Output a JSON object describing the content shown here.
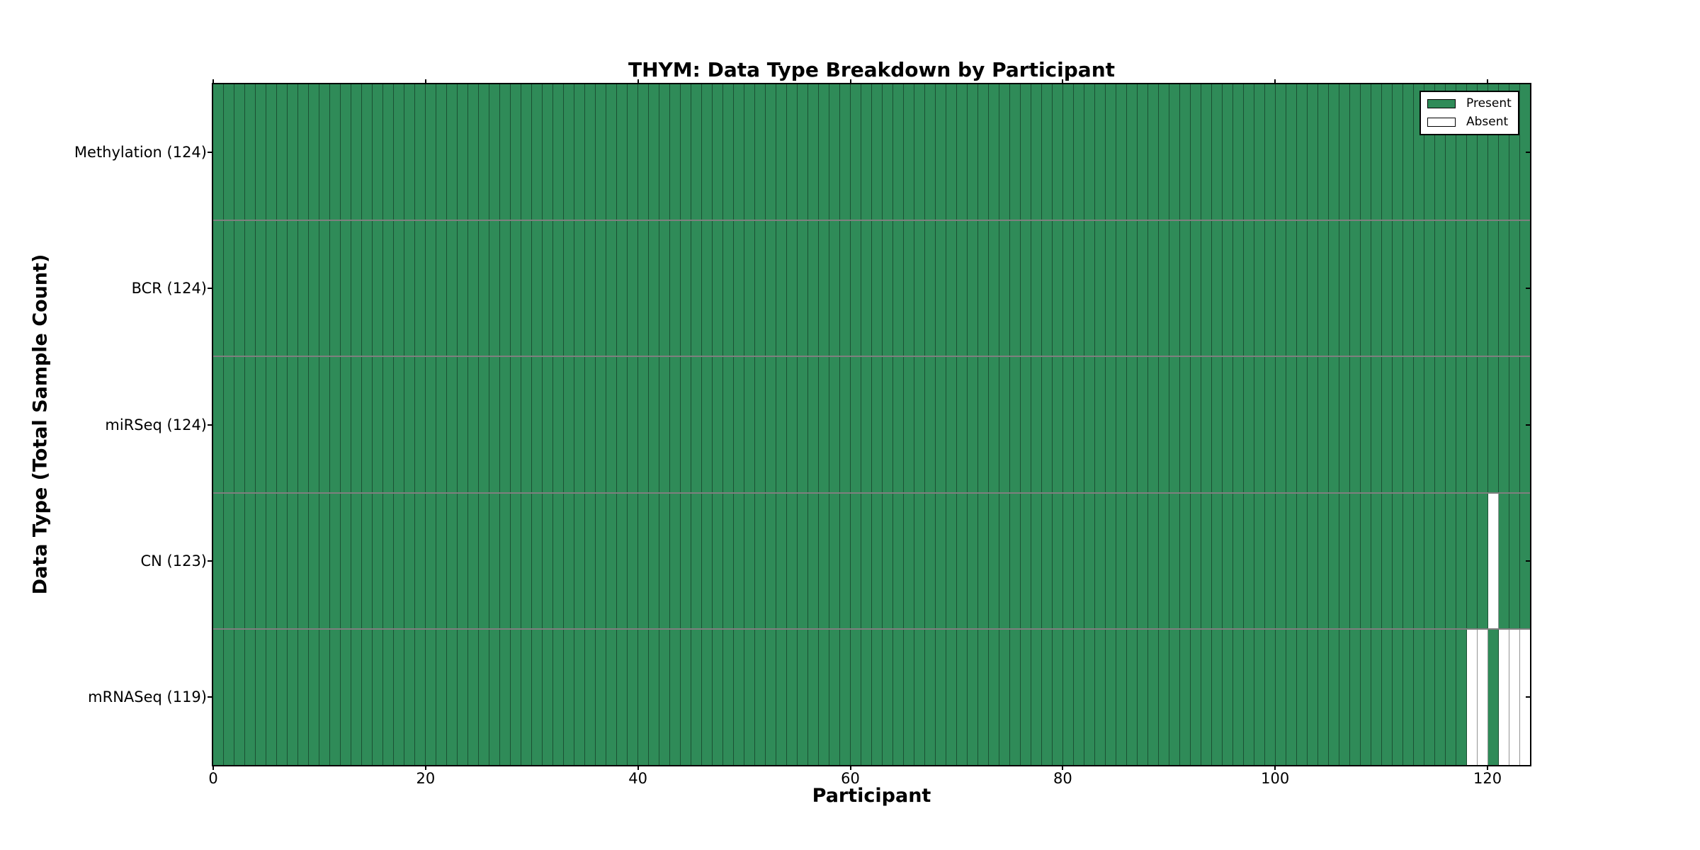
{
  "chart_data": {
    "type": "heatmap",
    "title": "THYM: Data Type Breakdown by Participant",
    "xlabel": "Participant",
    "ylabel": "Data Type (Total Sample Count)",
    "n_participants": 124,
    "x_range": [
      0,
      124
    ],
    "x_ticks": [
      0,
      20,
      40,
      60,
      80,
      100,
      120
    ],
    "grid": "cell-borders-on",
    "legend_position": "upper-right-inside",
    "legend_labels": {
      "present": "Present",
      "absent": "Absent"
    },
    "colors": {
      "present": "#2F8B58",
      "absent": "#FFFFFF",
      "cell_edge": "rgba(0,0,0,0.42)",
      "row_divider": "rgba(0,0,0,0.5)",
      "axis": "#000000"
    },
    "rows": [
      {
        "label": "Methylation (124)",
        "data_type": "Methylation",
        "total_samples": 124,
        "absent_indices": []
      },
      {
        "label": "BCR (124)",
        "data_type": "BCR",
        "total_samples": 124,
        "absent_indices": []
      },
      {
        "label": "miRSeq (124)",
        "data_type": "miRSeq",
        "total_samples": 124,
        "absent_indices": []
      },
      {
        "label": "CN (123)",
        "data_type": "CN",
        "total_samples": 123,
        "absent_indices": [
          120
        ]
      },
      {
        "label": "mRNASeq (119)",
        "data_type": "mRNASeq",
        "total_samples": 119,
        "absent_indices": [
          118,
          119,
          121,
          122,
          123
        ]
      }
    ]
  }
}
